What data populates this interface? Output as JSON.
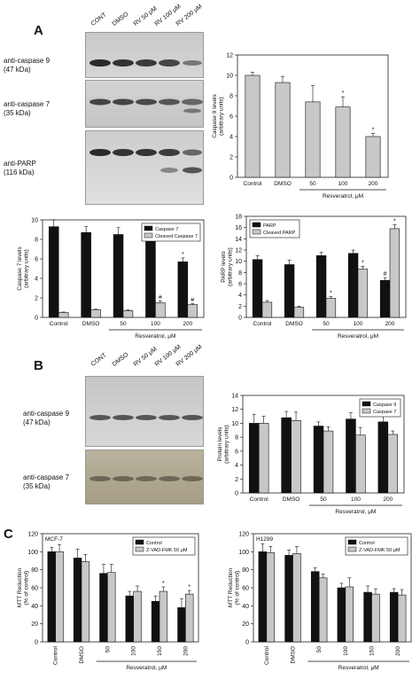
{
  "panels": {
    "a": {
      "letter": "A",
      "lanes": [
        "CONT",
        "DMSO",
        "RV 50 μM",
        "RV 100 μM",
        "RV 200 μM"
      ],
      "blots": [
        {
          "name": "anti-caspase 9",
          "mw": "(47 kDa)"
        },
        {
          "name": "anti-caspase 7",
          "mw": "(35 kDa)"
        },
        {
          "name": "anti-PARP",
          "mw": "(116 kDa)"
        }
      ]
    },
    "b": {
      "letter": "B",
      "lanes": [
        "CONT",
        "DMSO",
        "RV 50 μM",
        "RV 100 μM",
        "RV 200 μM"
      ],
      "blots": [
        {
          "name": "anti-caspase 9",
          "mw": "(47 kDa)"
        },
        {
          "name": "anti-caspase 7",
          "mw": "(35 kDa)"
        }
      ]
    },
    "c": {
      "letter": "C"
    }
  },
  "colors": {
    "black_bar": "#111111",
    "gray_bar": "#c8c8c8",
    "axis": "#222222",
    "blot_bg": "#cfcfcf"
  },
  "chart_data": [
    {
      "id": "caspase9",
      "type": "bar",
      "ylabel": "Caspase 9 levels\n(arbitrary units)",
      "xlabel": "Resveratrol, μM",
      "categories": [
        "Control",
        "DMSO",
        "50",
        "100",
        "200"
      ],
      "ylim": [
        0,
        12
      ],
      "yticks": [
        0,
        2,
        4,
        6,
        8,
        10,
        12
      ],
      "series": [
        {
          "values": [
            10.0,
            9.3,
            7.4,
            6.9,
            4.0
          ],
          "errors": [
            0.3,
            0.6,
            1.6,
            1.0,
            0.3
          ],
          "color": "#c8c8c8"
        }
      ],
      "annotations": [
        {
          "category": "100",
          "text": "*"
        },
        {
          "category": "200",
          "text": "*"
        }
      ]
    },
    {
      "id": "caspase7",
      "type": "bar",
      "ylabel": "Caspase 7 levels\n(arbitrary units)",
      "xlabel": "Resveratrol, μM",
      "categories": [
        "Control",
        "DMSO",
        "50",
        "100",
        "200"
      ],
      "ylim": [
        0,
        10
      ],
      "yticks": [
        0,
        2,
        4,
        6,
        8,
        10
      ],
      "legend": "top-right",
      "series": [
        {
          "name": "Caspase 7",
          "values": [
            9.3,
            8.7,
            8.5,
            7.8,
            5.7
          ],
          "errors": [
            0.7,
            0.6,
            0.7,
            0.9,
            0.4
          ],
          "color": "#111111"
        },
        {
          "name": "Cleaved Caspase 7",
          "values": [
            0.5,
            0.8,
            0.7,
            1.5,
            1.3
          ],
          "errors": [
            0.05,
            0.05,
            0.1,
            0.2,
            0.1
          ],
          "color": "#c8c8c8"
        }
      ],
      "annotations": [
        {
          "category": "200",
          "series": 0,
          "text": "*"
        },
        {
          "category": "100",
          "series": 1,
          "text": "#"
        },
        {
          "category": "200",
          "series": 1,
          "text": "#"
        }
      ]
    },
    {
      "id": "parp",
      "type": "bar",
      "ylabel": "PARP levels\n(arbitrary units)",
      "xlabel": "Resveratrol, μM",
      "categories": [
        "Control",
        "DMSO",
        "50",
        "100",
        "200"
      ],
      "ylim": [
        0,
        18
      ],
      "yticks": [
        0,
        2,
        4,
        6,
        8,
        10,
        12,
        14,
        16,
        18
      ],
      "legend": "top-left",
      "series": [
        {
          "name": "PARP",
          "values": [
            10.3,
            9.4,
            11.0,
            11.4,
            6.6
          ],
          "errors": [
            0.7,
            0.8,
            0.6,
            0.6,
            0.5
          ],
          "color": "#111111"
        },
        {
          "name": "Cleaved PARP",
          "values": [
            2.7,
            1.8,
            3.4,
            8.6,
            15.8
          ],
          "errors": [
            0.3,
            0.2,
            0.3,
            0.5,
            0.7
          ],
          "color": "#c8c8c8"
        }
      ],
      "annotations": [
        {
          "category": "200",
          "series": 0,
          "text": "#"
        },
        {
          "category": "50",
          "series": 1,
          "text": "*"
        },
        {
          "category": "100",
          "series": 1,
          "text": "*"
        },
        {
          "category": "200",
          "series": 1,
          "text": "*"
        }
      ]
    },
    {
      "id": "protein",
      "type": "bar",
      "ylabel": "Protein levels\n(arbitrary units)",
      "xlabel": "Resveratrol, μM",
      "categories": [
        "Control",
        "DMSO",
        "50",
        "100",
        "200"
      ],
      "ylim": [
        0,
        14
      ],
      "yticks": [
        0,
        2,
        4,
        6,
        8,
        10,
        12,
        14
      ],
      "legend": "top-right",
      "series": [
        {
          "name": "Caspase 9",
          "values": [
            10.0,
            10.8,
            9.6,
            10.6,
            10.2
          ],
          "errors": [
            1.3,
            0.9,
            0.6,
            0.9,
            1.2
          ],
          "color": "#111111"
        },
        {
          "name": "Caspase 7",
          "values": [
            10.0,
            10.4,
            8.9,
            8.3,
            8.4
          ],
          "errors": [
            1.0,
            1.2,
            0.6,
            1.1,
            0.5
          ],
          "color": "#c8c8c8"
        }
      ],
      "annotations": []
    },
    {
      "id": "mtt_mcf7",
      "type": "bar",
      "title": "MCF-7",
      "ylabel": "MTT Reduction\n(% of control)",
      "xlabel": "Resveratrol, μM",
      "categories": [
        "Control",
        "DMSO",
        "50",
        "100",
        "150",
        "200"
      ],
      "ylim": [
        0,
        120
      ],
      "yticks": [
        0,
        20,
        40,
        60,
        80,
        100,
        120
      ],
      "legend": "top-right",
      "series": [
        {
          "name": "Control",
          "values": [
            100,
            93,
            76,
            51,
            45,
            38
          ],
          "errors": [
            5,
            10,
            10,
            5,
            6,
            10
          ],
          "color": "#111111"
        },
        {
          "name": "Z-VAD-FMK 50 μM",
          "values": [
            100,
            89,
            77,
            56,
            56,
            53
          ],
          "errors": [
            8,
            8,
            9,
            6,
            5,
            4
          ],
          "color": "#c8c8c8"
        }
      ],
      "annotations": [
        {
          "category": "150",
          "series": 1,
          "text": "*"
        },
        {
          "category": "200",
          "series": 1,
          "text": "*"
        }
      ]
    },
    {
      "id": "mtt_h1299",
      "type": "bar",
      "title": "H1299",
      "ylabel": "MTT Reduction\n(% of control)",
      "xlabel": "Resveratrol, μM",
      "categories": [
        "Control",
        "DMSO",
        "50",
        "100",
        "150",
        "200"
      ],
      "ylim": [
        0,
        120
      ],
      "yticks": [
        0,
        20,
        40,
        60,
        80,
        100,
        120
      ],
      "legend": "top-right",
      "series": [
        {
          "name": "Control",
          "values": [
            100,
            96,
            78,
            60,
            55,
            55
          ],
          "errors": [
            9,
            6,
            4,
            5,
            7,
            4
          ],
          "color": "#111111"
        },
        {
          "name": "Z-VAD-FMK 50 μM",
          "values": [
            99,
            98,
            71,
            61,
            53,
            52
          ],
          "errors": [
            7,
            8,
            4,
            10,
            6,
            6
          ],
          "color": "#c8c8c8"
        }
      ],
      "annotations": []
    }
  ]
}
